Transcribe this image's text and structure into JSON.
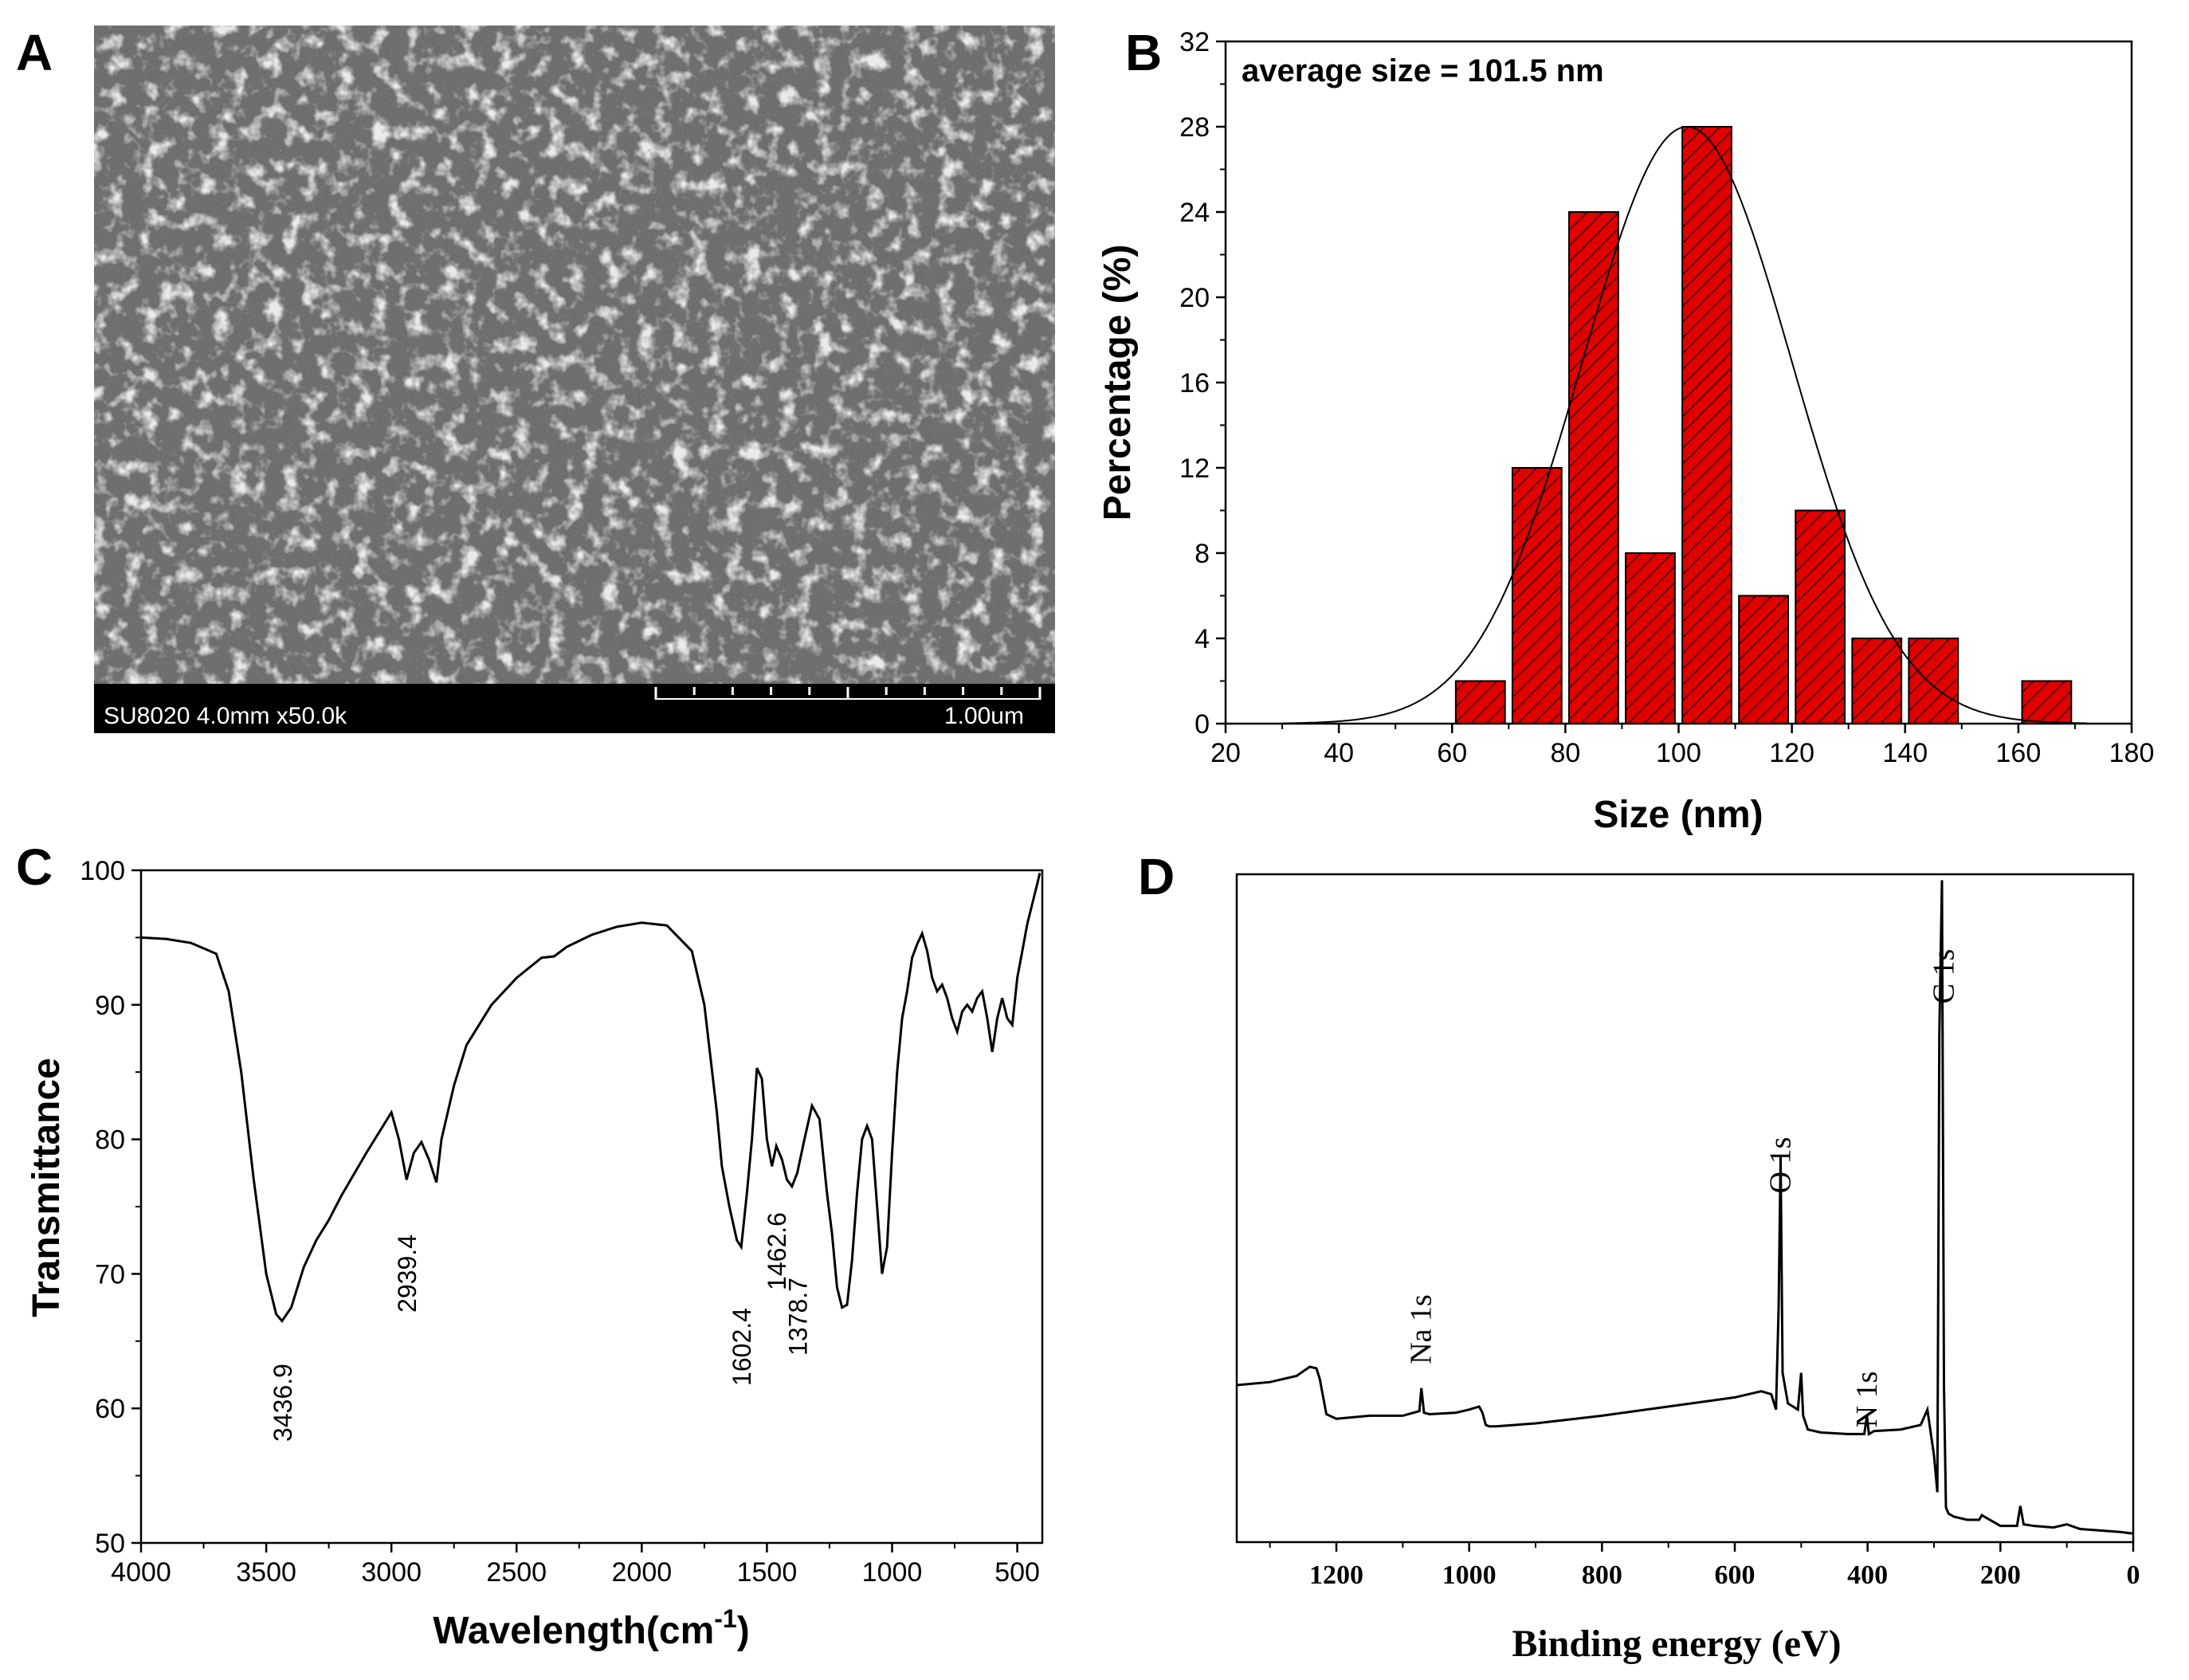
{
  "panels": {
    "a": {
      "letter": "A",
      "sem_info": "SU8020 4.0mm x50.0k",
      "scale_label": "1.00um"
    },
    "b": {
      "letter": "B",
      "annotation": "average size = 101.5 nm",
      "xlabel": "Size (nm)",
      "ylabel": "Percentage (%)"
    },
    "c": {
      "letter": "C",
      "xlabel_main": "Wavelength(cm",
      "xlabel_sup": "-1",
      "xlabel_tail": ")",
      "ylabel": "Transmittance"
    },
    "d": {
      "letter": "D",
      "xlabel": "Binding energy (eV)"
    }
  },
  "chart_data": [
    {
      "panel": "B",
      "type": "bar",
      "title": "",
      "xlabel": "Size (nm)",
      "ylabel": "Percentage (%)",
      "xlim": [
        20,
        180
      ],
      "ylim": [
        0,
        32
      ],
      "xticks": [
        20,
        40,
        60,
        80,
        100,
        120,
        140,
        160,
        180
      ],
      "yticks": [
        0,
        4,
        8,
        12,
        16,
        20,
        24,
        28,
        32
      ],
      "bar_width": 8.7,
      "bar_color": "#e00000",
      "hatched": true,
      "bars": [
        {
          "x": 65,
          "y": 2
        },
        {
          "x": 75,
          "y": 12
        },
        {
          "x": 85,
          "y": 24
        },
        {
          "x": 95,
          "y": 8
        },
        {
          "x": 105,
          "y": 28
        },
        {
          "x": 115,
          "y": 6
        },
        {
          "x": 125,
          "y": 10
        },
        {
          "x": 135,
          "y": 4
        },
        {
          "x": 145,
          "y": 4
        },
        {
          "x": 165,
          "y": 2
        }
      ],
      "fit": {
        "type": "gaussian",
        "mean": 101.5,
        "peak": 28,
        "sigma": 18.5,
        "range": [
          30,
          172
        ]
      },
      "annotation": "average size = 101.5 nm"
    },
    {
      "panel": "C",
      "type": "line",
      "title": "",
      "xlabel": "Wavelength(cm-1)",
      "ylabel": "Transmittance",
      "xlim": [
        4000,
        400
      ],
      "ylim": [
        50,
        100
      ],
      "xticks": [
        4000,
        3500,
        3000,
        2500,
        2000,
        1500,
        1000,
        500
      ],
      "yticks": [
        50,
        60,
        70,
        80,
        90,
        100
      ],
      "x": [
        4000,
        3900,
        3800,
        3700,
        3650,
        3600,
        3550,
        3500,
        3460,
        3436.9,
        3400,
        3350,
        3300,
        3250,
        3200,
        3100,
        3000,
        2970,
        2939.4,
        2910,
        2880,
        2850,
        2820,
        2800,
        2750,
        2700,
        2600,
        2500,
        2400,
        2350,
        2300,
        2200,
        2100,
        2000,
        1900,
        1800,
        1750,
        1700,
        1680,
        1650,
        1620,
        1602.4,
        1580,
        1560,
        1540,
        1520,
        1500,
        1480,
        1462.6,
        1440,
        1420,
        1400,
        1378.7,
        1350,
        1320,
        1290,
        1260,
        1240,
        1220,
        1200,
        1180,
        1160,
        1140,
        1120,
        1100,
        1080,
        1060,
        1040,
        1020,
        1000,
        980,
        960,
        940,
        920,
        900,
        880,
        860,
        840,
        820,
        800,
        780,
        760,
        740,
        720,
        700,
        680,
        660,
        640,
        620,
        600,
        580,
        560,
        540,
        520,
        500,
        480,
        460,
        440,
        420,
        410
      ],
      "y": [
        95,
        94.9,
        94.6,
        93.8,
        91,
        85,
        77,
        70,
        67,
        66.5,
        67.5,
        70.5,
        72.5,
        74,
        75.8,
        79,
        82,
        80,
        77,
        79,
        79.8,
        78.5,
        76.8,
        80,
        84,
        87,
        90,
        92,
        93.5,
        93.6,
        94.3,
        95.2,
        95.8,
        96.1,
        95.9,
        94,
        90,
        82,
        78,
        75,
        72.5,
        72,
        76,
        80,
        85.3,
        84.5,
        80,
        78,
        79.5,
        78.5,
        77,
        76.5,
        77.5,
        80,
        82.5,
        81.5,
        76,
        73,
        69,
        67.5,
        67.7,
        71,
        76,
        80,
        81,
        80,
        75,
        70,
        72,
        79,
        85,
        89,
        91,
        93.5,
        94.5,
        95.3,
        94,
        92,
        91,
        91.5,
        90.5,
        89,
        88,
        89.5,
        90,
        89.5,
        90.5,
        91,
        89,
        86.5,
        89,
        90.5,
        89,
        88.5,
        92,
        94,
        96,
        97.5,
        99,
        99.8
      ],
      "peak_labels": [
        "3436.9",
        "2939.4",
        "1602.4",
        "1462.6",
        "1378.7"
      ]
    },
    {
      "panel": "D",
      "type": "line",
      "title": "",
      "xlabel": "Binding energy (eV)",
      "ylabel": "",
      "xlim": [
        1350,
        0
      ],
      "xticks": [
        1200,
        1000,
        800,
        600,
        400,
        200,
        0
      ],
      "yticks": [],
      "x": [
        1350,
        1300,
        1260,
        1240,
        1230,
        1225,
        1215,
        1200,
        1150,
        1100,
        1075,
        1072,
        1068,
        1060,
        1020,
        1000,
        985,
        980,
        975,
        970,
        960,
        900,
        800,
        700,
        600,
        560,
        545,
        538,
        534,
        531,
        528,
        520,
        505,
        500,
        497,
        490,
        470,
        430,
        405,
        401,
        398,
        390,
        350,
        320,
        310,
        300,
        295,
        292,
        288,
        285,
        282,
        278,
        270,
        250,
        232,
        228,
        200,
        175,
        170,
        165,
        150,
        120,
        100,
        80,
        50,
        20,
        0
      ],
      "y": [
        100,
        102,
        106,
        112,
        111,
        104,
        81,
        78,
        80,
        80,
        83,
        98,
        82,
        81,
        82,
        84,
        86,
        82,
        74,
        73,
        73,
        75,
        80,
        86,
        92,
        96,
        94,
        84,
        150,
        250,
        108,
        88,
        84,
        108,
        80,
        71,
        69,
        68,
        68,
        80,
        68,
        70,
        71,
        74,
        84,
        54,
        30,
        330,
        430,
        100,
        20,
        16,
        14,
        12,
        12,
        15,
        8,
        8,
        21,
        9,
        8,
        7,
        9,
        6,
        5,
        4,
        3
      ],
      "peak_labels": [
        "Na 1s",
        "O 1s",
        "N 1s",
        "C 1s"
      ]
    }
  ]
}
